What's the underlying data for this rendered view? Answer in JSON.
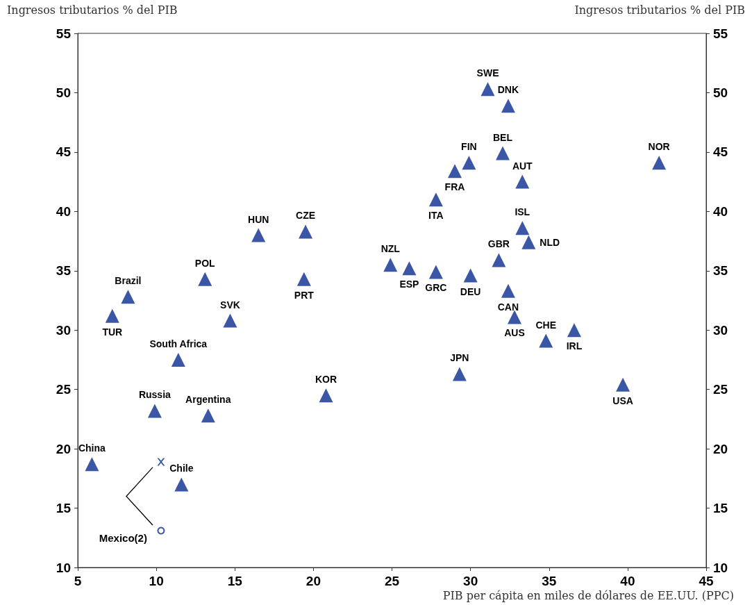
{
  "chart_data": {
    "type": "scatter",
    "ylabel": "Ingresos tributarios % del PIB",
    "y2label": "Ingresos tributarios % del PIB",
    "xlabel": "PIB per cápita en miles de dólares de EE.UU. (PPC)",
    "xlim": [
      5,
      45
    ],
    "xticks": [
      5,
      10,
      15,
      20,
      25,
      30,
      35,
      40,
      45
    ],
    "ylim": [
      10,
      55
    ],
    "yticks": [
      10,
      15,
      20,
      25,
      30,
      35,
      40,
      45,
      50,
      55
    ],
    "y2lim": [
      10,
      55
    ],
    "y2ticks": [
      10,
      15,
      20,
      25,
      30,
      35,
      40,
      45,
      50,
      55
    ],
    "grid": false,
    "series": [
      {
        "color": "#3a56a5",
        "marker": "triangle",
        "x": [
          31.1,
          32.4,
          32.05,
          29.9,
          29.0,
          33.3,
          27.8,
          42.0,
          33.3,
          33.7,
          31.8,
          24.9,
          26.1,
          27.8,
          30.0,
          32.4,
          32.8,
          34.8,
          36.6,
          29.3,
          39.7,
          16.5,
          19.5,
          13.1,
          19.4,
          8.2,
          7.2,
          14.7,
          11.4,
          20.8,
          9.9,
          13.3,
          5.9,
          11.6
        ],
        "values": [
          50.3,
          48.9,
          44.9,
          44.1,
          43.4,
          42.5,
          41.0,
          44.1,
          38.6,
          37.4,
          35.9,
          35.5,
          35.2,
          34.9,
          34.6,
          33.3,
          31.1,
          29.1,
          30.0,
          26.3,
          25.4,
          38.0,
          38.3,
          34.3,
          34.3,
          32.8,
          31.2,
          30.8,
          27.5,
          24.5,
          23.2,
          22.8,
          18.7,
          17.0
        ],
        "value_labels": [
          "SWE",
          "DNK",
          "BEL",
          "FIN",
          "FRA",
          "AUT",
          "ITA",
          "NOR",
          "ISL",
          "NLD",
          "GBR",
          "NZL",
          "ESP",
          "GRC",
          "DEU",
          "CAN",
          "AUS",
          "CHE",
          "IRL",
          "JPN",
          "USA",
          "HUN",
          "CZE",
          "POL",
          "PRT",
          "Brazil",
          "TUR",
          "SVK",
          "South Africa",
          "KOR",
          "Russia",
          "Argentina",
          "China",
          "Chile"
        ]
      },
      {
        "color": "#3a56a5",
        "marker": "cross",
        "x": [
          10.3
        ],
        "values": [
          18.9
        ]
      },
      {
        "color": "#3a56a5",
        "marker": "circle",
        "x": [
          10.3
        ],
        "values": [
          13.1
        ]
      }
    ],
    "annotations": [
      {
        "text": "Mexico(2)",
        "x": 10.3,
        "y": 13.1
      }
    ]
  }
}
